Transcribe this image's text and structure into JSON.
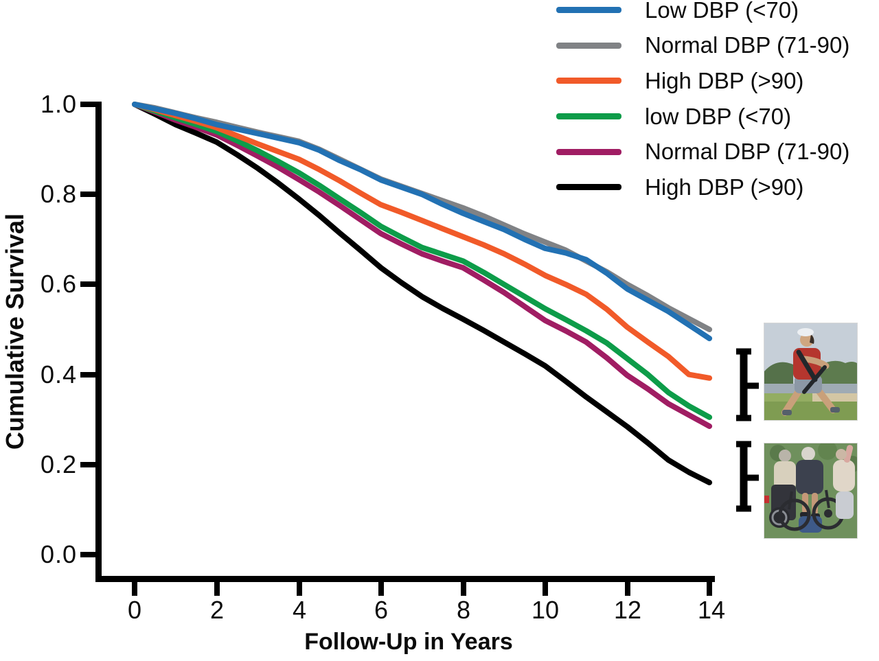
{
  "axes": {
    "y": {
      "label": "Cumulative Survival",
      "ticks": [
        "1.0",
        "0.8",
        "0.6",
        "0.4",
        "0.2",
        "0.0"
      ],
      "range": [
        0.0,
        1.0
      ]
    },
    "x": {
      "label": "Follow-Up in Years",
      "ticks": [
        "0",
        "2",
        "4",
        "6",
        "8",
        "10",
        "12",
        "14"
      ],
      "range": [
        0,
        14
      ]
    }
  },
  "legend": {
    "position": "top-right",
    "items": [
      {
        "label": "Low DBP (<70)",
        "color": "#2271B3"
      },
      {
        "label": "Normal DBP (71-90)",
        "color": "#808285"
      },
      {
        "label": "High DBP (>90)",
        "color": "#F15A29"
      },
      {
        "label": "low DBP (<70)",
        "color": "#0D9C49"
      },
      {
        "label": "Normal DBP (71-90)",
        "color": "#A01D63"
      },
      {
        "label": "High DBP (>90)",
        "color": "#000000"
      }
    ]
  },
  "images": [
    {
      "name": "active-person-photo"
    },
    {
      "name": "wheelchair-group-photo"
    }
  ],
  "chart_data": {
    "type": "line",
    "title": "",
    "xlabel": "Follow-Up in Years",
    "ylabel": "Cumulative Survival",
    "xlim": [
      0,
      14
    ],
    "ylim": [
      0.0,
      1.0
    ],
    "grid": false,
    "legend_position": "top-right",
    "x": [
      0,
      0.5,
      1,
      1.5,
      2,
      2.5,
      3,
      3.5,
      4,
      4.5,
      5,
      5.5,
      6,
      6.5,
      7,
      7.5,
      8,
      8.5,
      9,
      9.5,
      10,
      10.5,
      11,
      11.5,
      12,
      12.5,
      13,
      13.5,
      14
    ],
    "series": [
      {
        "id": "blue-low-dbp",
        "name": "Low DBP (<70)",
        "color": "#2271B3",
        "values": [
          1.0,
          0.99,
          0.98,
          0.968,
          0.955,
          0.945,
          0.935,
          0.925,
          0.915,
          0.898,
          0.875,
          0.855,
          0.832,
          0.816,
          0.8,
          0.778,
          0.758,
          0.74,
          0.722,
          0.7,
          0.68,
          0.67,
          0.655,
          0.625,
          0.59,
          0.565,
          0.54,
          0.51,
          0.48
        ]
      },
      {
        "id": "gray-normal-dbp",
        "name": "Normal DBP (71-90)",
        "color": "#808285",
        "values": [
          1.0,
          0.992,
          0.981,
          0.97,
          0.96,
          0.949,
          0.938,
          0.928,
          0.918,
          0.9,
          0.878,
          0.856,
          0.834,
          0.818,
          0.802,
          0.786,
          0.77,
          0.752,
          0.732,
          0.712,
          0.694,
          0.676,
          0.652,
          0.628,
          0.6,
          0.575,
          0.548,
          0.524,
          0.5
        ]
      },
      {
        "id": "orange-high-dbp",
        "name": "High DBP (>90)",
        "color": "#F15A29",
        "values": [
          1.0,
          0.988,
          0.975,
          0.962,
          0.948,
          0.93,
          0.912,
          0.895,
          0.878,
          0.855,
          0.83,
          0.803,
          0.777,
          0.76,
          0.742,
          0.724,
          0.706,
          0.688,
          0.668,
          0.645,
          0.62,
          0.6,
          0.578,
          0.545,
          0.505,
          0.472,
          0.44,
          0.4,
          0.392
        ]
      },
      {
        "id": "green-low-dbp",
        "name": "low DBP (<70)",
        "color": "#0D9C49",
        "values": [
          1.0,
          0.985,
          0.97,
          0.955,
          0.94,
          0.919,
          0.897,
          0.873,
          0.848,
          0.82,
          0.79,
          0.76,
          0.729,
          0.705,
          0.682,
          0.667,
          0.652,
          0.627,
          0.6,
          0.573,
          0.546,
          0.522,
          0.497,
          0.47,
          0.435,
          0.4,
          0.36,
          0.33,
          0.305
        ]
      },
      {
        "id": "purple-normal-dbp",
        "name": "Normal DBP (71-90)",
        "color": "#A01D63",
        "values": [
          1.0,
          0.983,
          0.965,
          0.949,
          0.932,
          0.909,
          0.885,
          0.86,
          0.833,
          0.805,
          0.775,
          0.744,
          0.713,
          0.69,
          0.668,
          0.652,
          0.637,
          0.61,
          0.582,
          0.551,
          0.52,
          0.497,
          0.472,
          0.437,
          0.398,
          0.368,
          0.335,
          0.31,
          0.285
        ]
      },
      {
        "id": "black-high-dbp",
        "name": "High DBP (>90)",
        "color": "#000000",
        "values": [
          1.0,
          0.978,
          0.955,
          0.936,
          0.916,
          0.888,
          0.858,
          0.825,
          0.79,
          0.753,
          0.714,
          0.676,
          0.637,
          0.604,
          0.573,
          0.547,
          0.523,
          0.498,
          0.472,
          0.446,
          0.419,
          0.385,
          0.35,
          0.317,
          0.284,
          0.248,
          0.21,
          0.183,
          0.16
        ]
      }
    ]
  }
}
